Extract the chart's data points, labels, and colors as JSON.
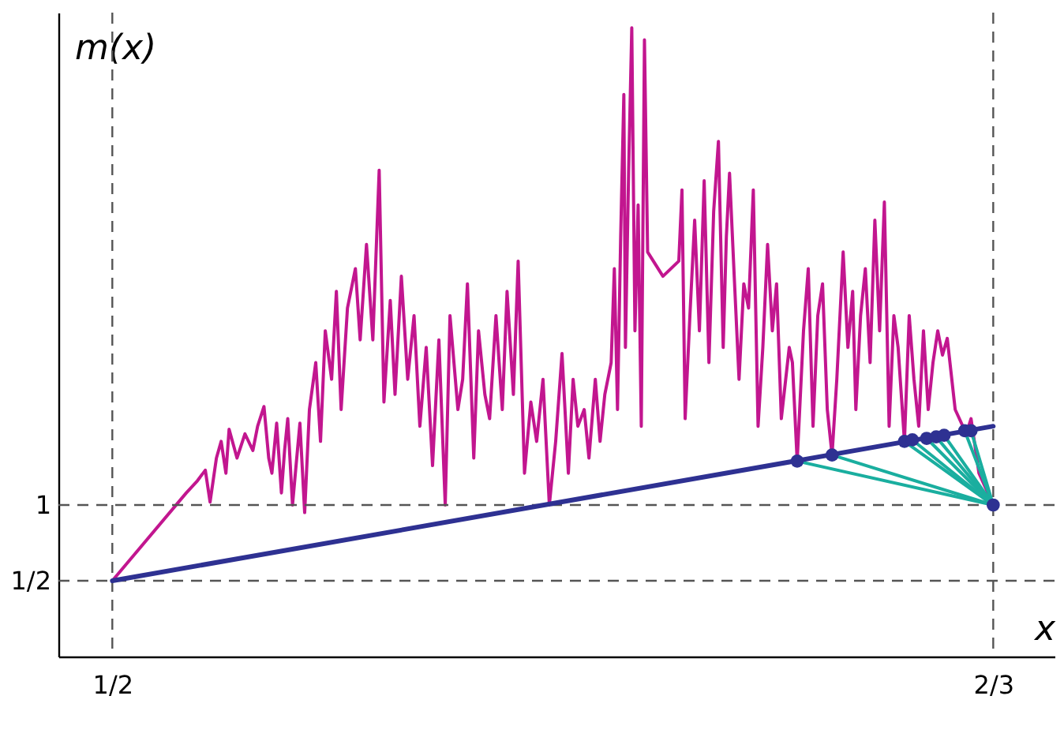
{
  "chart_data": {
    "type": "line",
    "xlabel": "x",
    "ylabel": "m(x)",
    "xlim": [
      0.4898,
      0.6783
    ],
    "ylim": [
      0,
      4.25
    ],
    "xticks": [
      {
        "value": 0.5,
        "label": "1/2"
      },
      {
        "value": 0.6667,
        "label": "2/3"
      }
    ],
    "yticks": [
      {
        "value": 0.5,
        "label": "1/2"
      },
      {
        "value": 1,
        "label": "1"
      }
    ],
    "grid": false,
    "ref_lines": [
      {
        "axis": "y",
        "value": 1,
        "color": "#555555",
        "line_style": "dashed"
      },
      {
        "axis": "y",
        "value": 0.5,
        "color": "#555555",
        "line_style": "dashed"
      },
      {
        "axis": "x",
        "value": 0.5,
        "color": "#555555",
        "line_style": "dashed"
      },
      {
        "axis": "x",
        "value": 0.6667,
        "color": "#555555",
        "line_style": "dashed"
      }
    ],
    "series": [
      {
        "color": "#c2168f",
        "x": [
          0.5,
          0.514,
          0.5161,
          0.5176,
          0.5185,
          0.5197,
          0.5206,
          0.5215,
          0.5221,
          0.5236,
          0.5251,
          0.5266,
          0.5275,
          0.5287,
          0.5296,
          0.5302,
          0.5311,
          0.532,
          0.5326,
          0.5332,
          0.5341,
          0.5349,
          0.5355,
          0.5364,
          0.5373,
          0.5385,
          0.5394,
          0.5403,
          0.5415,
          0.5424,
          0.5433,
          0.5445,
          0.546,
          0.5469,
          0.5481,
          0.5493,
          0.5505,
          0.5514,
          0.5526,
          0.5535,
          0.5547,
          0.5559,
          0.5571,
          0.5582,
          0.5594,
          0.5606,
          0.5618,
          0.563,
          0.5639,
          0.5654,
          0.5663,
          0.5672,
          0.5684,
          0.5693,
          0.5705,
          0.5714,
          0.5726,
          0.5738,
          0.5747,
          0.5759,
          0.5768,
          0.578,
          0.5792,
          0.5803,
          0.5815,
          0.5827,
          0.5839,
          0.5851,
          0.5863,
          0.5872,
          0.5881,
          0.5893,
          0.5902,
          0.5914,
          0.5923,
          0.5932,
          0.5944,
          0.595,
          0.5956,
          0.5962,
          0.5968,
          0.5971,
          0.5977,
          0.5983,
          0.5989,
          0.5995,
          0.6001,
          0.6007,
          0.6013,
          0.6042,
          0.6072,
          0.6078,
          0.6084,
          0.6093,
          0.6102,
          0.6111,
          0.612,
          0.6129,
          0.6138,
          0.6147,
          0.6156,
          0.6162,
          0.6168,
          0.6177,
          0.6186,
          0.6195,
          0.6204,
          0.6213,
          0.6222,
          0.6231,
          0.624,
          0.6249,
          0.6257,
          0.6266,
          0.6281,
          0.6287,
          0.6296,
          0.6308,
          0.6317,
          0.6326,
          0.6335,
          0.6344,
          0.6353,
          0.6362,
          0.6371,
          0.6383,
          0.6392,
          0.6401,
          0.6407,
          0.6416,
          0.6425,
          0.6434,
          0.6443,
          0.6452,
          0.6461,
          0.647,
          0.6479,
          0.6487,
          0.6499,
          0.6508,
          0.6517,
          0.6526,
          0.6535,
          0.6544,
          0.6553,
          0.6562,
          0.6571,
          0.658,
          0.6595,
          0.6616,
          0.6625,
          0.664,
          0.6667
        ],
        "values": [
          0.5,
          1.08,
          1.16,
          1.23,
          1.02,
          1.31,
          1.42,
          1.21,
          1.5,
          1.31,
          1.47,
          1.36,
          1.52,
          1.65,
          1.31,
          1.21,
          1.54,
          1.08,
          1.36,
          1.57,
          1,
          1.31,
          1.54,
          0.95,
          1.63,
          1.94,
          1.42,
          2.15,
          1.83,
          2.41,
          1.63,
          2.3,
          2.56,
          2.09,
          2.72,
          2.09,
          3.21,
          1.68,
          2.35,
          1.73,
          2.51,
          1.83,
          2.25,
          1.52,
          2.04,
          1.26,
          2.09,
          1,
          2.25,
          1.63,
          1.83,
          2.46,
          1.31,
          2.15,
          1.73,
          1.57,
          2.25,
          1.63,
          2.41,
          1.73,
          2.61,
          1.21,
          1.68,
          1.42,
          1.83,
          1,
          1.42,
          2.0,
          1.21,
          1.83,
          1.52,
          1.63,
          1.31,
          1.83,
          1.42,
          1.73,
          1.94,
          2.56,
          1.63,
          2.77,
          3.71,
          2.04,
          3.19,
          4.15,
          2.15,
          2.98,
          1.52,
          4.07,
          2.67,
          2.51,
          2.61,
          3.08,
          1.57,
          2.25,
          2.88,
          2.15,
          3.14,
          1.94,
          2.94,
          3.4,
          2.04,
          2.77,
          3.19,
          2.5,
          1.83,
          2.46,
          2.3,
          3.08,
          1.52,
          2.04,
          2.72,
          2.15,
          2.46,
          1.57,
          2.04,
          1.94,
          1.29,
          2.15,
          2.56,
          1.52,
          2.25,
          2.46,
          1.63,
          1.33,
          1.83,
          2.67,
          2.04,
          2.41,
          1.63,
          2.25,
          2.56,
          1.94,
          2.88,
          2.15,
          3.0,
          1.52,
          2.25,
          2.04,
          1.42,
          2.25,
          1.83,
          1.52,
          2.15,
          1.63,
          1.94,
          2.15,
          1.99,
          2.1,
          1.63,
          1.47,
          1.57,
          1.21,
          1
        ]
      },
      {
        "type": "line",
        "color": "#1aae9f",
        "x": [
          0.6296,
          0.6667
        ],
        "values": [
          1.29,
          1
        ]
      },
      {
        "type": "line",
        "color": "#1aae9f",
        "x": [
          0.6362,
          0.6667
        ],
        "values": [
          1.33,
          1
        ]
      },
      {
        "type": "line",
        "color": "#1aae9f",
        "x": [
          0.6499,
          0.6667
        ],
        "values": [
          1.42,
          1
        ]
      },
      {
        "type": "line",
        "color": "#1aae9f",
        "x": [
          0.6514,
          0.6667
        ],
        "values": [
          1.43,
          1
        ]
      },
      {
        "type": "line",
        "color": "#1aae9f",
        "x": [
          0.6541,
          0.6667
        ],
        "values": [
          1.44,
          1
        ]
      },
      {
        "type": "line",
        "color": "#1aae9f",
        "x": [
          0.6559,
          0.6667
        ],
        "values": [
          1.45,
          1
        ]
      },
      {
        "type": "line",
        "color": "#1aae9f",
        "x": [
          0.6574,
          0.6667
        ],
        "values": [
          1.46,
          1
        ]
      },
      {
        "type": "line",
        "color": "#1aae9f",
        "x": [
          0.6613,
          0.6667
        ],
        "values": [
          1.49,
          1
        ]
      },
      {
        "type": "line",
        "color": "#1aae9f",
        "x": [
          0.6625,
          0.6667
        ],
        "values": [
          1.49,
          1
        ]
      },
      {
        "color": "#2e3192",
        "x": [
          0.5,
          0.6667
        ],
        "values": [
          0.5,
          1.52
        ]
      },
      {
        "type": "scatter",
        "marker": "circle",
        "color": "#2e3192",
        "x": [
          0.6296,
          0.6362,
          0.6499,
          0.6514,
          0.6541,
          0.6559,
          0.6574,
          0.6613,
          0.6625,
          0.6667
        ],
        "values": [
          1.29,
          1.33,
          1.42,
          1.43,
          1.44,
          1.45,
          1.46,
          1.49,
          1.49,
          1
        ]
      }
    ]
  }
}
